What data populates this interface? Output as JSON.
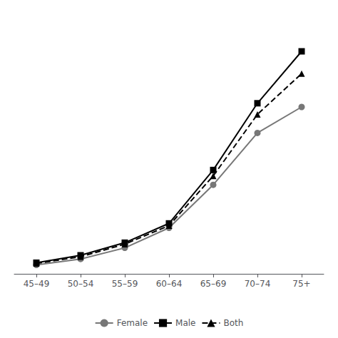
{
  "chart_data": {
    "type": "line",
    "categories": [
      "45–49",
      "50–54",
      "55–59",
      "60–64",
      "65–69",
      "70–74",
      "75+"
    ],
    "series": [
      {
        "name": "Female",
        "color": "#777777",
        "marker": "circle",
        "line_style": "solid",
        "values": [
          1.2,
          2.0,
          3.5,
          6.2,
          12.0,
          19.0,
          22.5
        ]
      },
      {
        "name": "Male",
        "color": "#000000",
        "marker": "square",
        "line_style": "solid",
        "values": [
          1.5,
          2.5,
          4.2,
          6.8,
          14.0,
          23.0,
          30.0
        ]
      },
      {
        "name": "Both",
        "color": "#000000",
        "marker": "triangle",
        "line_style": "dashed",
        "values": [
          1.4,
          2.3,
          4.0,
          6.5,
          13.2,
          21.5,
          27.0
        ]
      }
    ],
    "ylim": [
      0,
      35
    ],
    "tick_labels": "x",
    "grid": false,
    "legend": "bottom"
  }
}
